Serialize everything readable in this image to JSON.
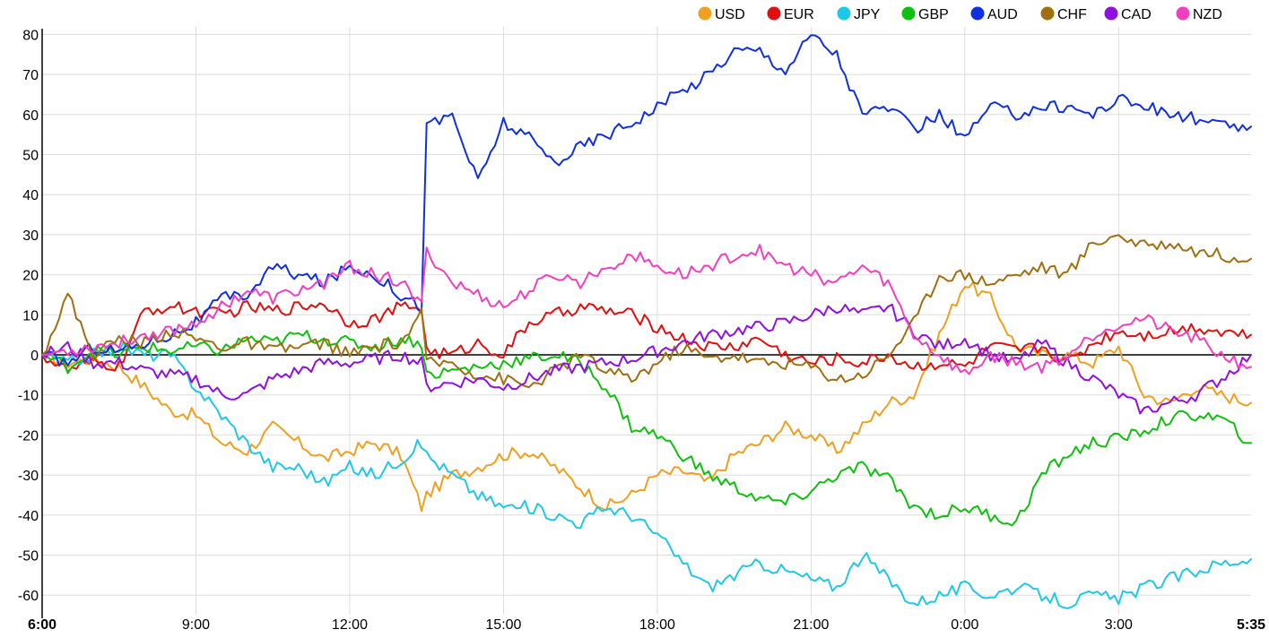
{
  "chart_data": {
    "type": "line",
    "title": "",
    "xlabel": "",
    "ylabel": "",
    "x_ticks": [
      "6:00",
      "9:00",
      "12:00",
      "15:00",
      "18:00",
      "21:00",
      "0:00",
      "3:00",
      "5:35"
    ],
    "x_range_hours": [
      0,
      23.583
    ],
    "ylim": [
      -63,
      81
    ],
    "y_ticks": [
      80,
      70,
      60,
      50,
      40,
      30,
      20,
      10,
      0,
      -10,
      -20,
      -30,
      -40,
      -50,
      -60
    ],
    "grid": true,
    "legend_position": "top-right",
    "series": [
      {
        "name": "USD",
        "color": "#f0a020",
        "x": [
          0,
          0.5,
          1,
          1.5,
          2,
          2.5,
          3,
          3.5,
          4,
          4.5,
          5,
          5.5,
          6,
          6.5,
          7,
          7.4,
          7.5,
          8,
          8.5,
          9,
          9.5,
          10,
          10.5,
          11,
          11.5,
          12,
          12.5,
          13,
          13.5,
          14,
          14.5,
          15,
          15.5,
          16,
          16.5,
          17,
          17.5,
          18,
          18.5,
          19,
          19.5,
          20,
          20.5,
          21,
          21.5,
          22,
          22.5,
          23,
          23.583
        ],
        "y": [
          0,
          -2,
          -1,
          -3,
          -8,
          -14,
          -15,
          -22,
          -24,
          -18,
          -22,
          -26,
          -24,
          -22,
          -25,
          -38,
          -35,
          -30,
          -28,
          -25,
          -24,
          -28,
          -33,
          -38,
          -35,
          -30,
          -29,
          -32,
          -25,
          -22,
          -18,
          -20,
          -24,
          -18,
          -12,
          -10,
          5,
          18,
          14,
          2,
          0,
          0,
          -2,
          2,
          -10,
          -12,
          -8,
          -10,
          -12
        ]
      },
      {
        "name": "EUR",
        "color": "#e01010",
        "x": [
          0,
          0.5,
          1,
          1.5,
          2,
          2.5,
          3,
          3.5,
          4,
          4.5,
          5,
          5.5,
          6,
          6.5,
          7,
          7.4,
          7.5,
          8,
          8.5,
          9,
          9.5,
          10,
          10.5,
          11,
          11.5,
          12,
          12.5,
          13,
          13.5,
          14,
          14.5,
          15,
          15.5,
          16,
          16.5,
          17,
          17.5,
          18,
          18.5,
          19,
          19.5,
          20,
          20.5,
          21,
          21.5,
          22,
          22.5,
          23,
          23.583
        ],
        "y": [
          0,
          -4,
          -2,
          -3,
          11,
          12,
          11,
          10,
          12,
          11,
          12,
          13,
          8,
          9,
          12,
          12,
          1,
          0,
          3,
          0,
          8,
          10,
          12,
          11,
          10,
          7,
          4,
          2,
          2,
          4,
          0,
          -2,
          -1,
          -2,
          0,
          -3,
          -2,
          -3,
          2,
          1,
          2,
          -2,
          3,
          6,
          5,
          6,
          7,
          6,
          5
        ]
      },
      {
        "name": "JPY",
        "color": "#20c8e8",
        "x": [
          0,
          0.5,
          1,
          1.5,
          2,
          2.5,
          3,
          3.5,
          4,
          4.5,
          5,
          5.5,
          6,
          6.5,
          7,
          7.4,
          7.5,
          8,
          8.5,
          9,
          9.5,
          10,
          10.5,
          11,
          11.5,
          12,
          12.5,
          13,
          13.5,
          14,
          14.5,
          15,
          15.5,
          16,
          16.5,
          17,
          17.5,
          18,
          18.5,
          19,
          19.5,
          20,
          20.5,
          21,
          21.5,
          22,
          22.5,
          23,
          23.583
        ],
        "y": [
          0,
          -2,
          0,
          2,
          0,
          0,
          -8,
          -15,
          -22,
          -28,
          -28,
          -32,
          -28,
          -30,
          -26,
          -22,
          -25,
          -30,
          -35,
          -38,
          -38,
          -40,
          -42,
          -38,
          -40,
          -45,
          -52,
          -58,
          -55,
          -52,
          -54,
          -56,
          -58,
          -50,
          -56,
          -62,
          -60,
          -58,
          -60,
          -58,
          -60,
          -62,
          -60,
          -61,
          -58,
          -56,
          -54,
          -52,
          -51
        ]
      },
      {
        "name": "GBP",
        "color": "#10c010",
        "x": [
          0,
          0.5,
          1,
          1.5,
          2,
          2.5,
          3,
          3.5,
          4,
          4.5,
          5,
          5.5,
          6,
          6.5,
          7,
          7.4,
          7.5,
          8,
          8.5,
          9,
          9.5,
          10,
          10.5,
          11,
          11.5,
          12,
          12.5,
          13,
          13.5,
          14,
          14.5,
          15,
          15.5,
          16,
          16.5,
          17,
          17.5,
          18,
          18.5,
          19,
          19.5,
          20,
          20.5,
          21,
          21.5,
          22,
          22.5,
          23,
          23.583
        ],
        "y": [
          0,
          -3,
          1,
          0,
          2,
          1,
          2,
          1,
          4,
          3,
          5,
          4,
          3,
          2,
          4,
          3,
          -5,
          -4,
          -3,
          -2,
          -1,
          0,
          -2,
          -8,
          -18,
          -20,
          -25,
          -30,
          -33,
          -36,
          -37,
          -34,
          -30,
          -28,
          -31,
          -38,
          -40,
          -38,
          -40,
          -42,
          -30,
          -25,
          -22,
          -21,
          -19,
          -16,
          -15,
          -16,
          -22
        ]
      },
      {
        "name": "AUD",
        "color": "#1030e0",
        "x": [
          0,
          0.5,
          1,
          1.5,
          2,
          2.5,
          3,
          3.5,
          4,
          4.5,
          5,
          5.5,
          6,
          6.5,
          7,
          7.4,
          7.5,
          8,
          8.5,
          9,
          9.5,
          10,
          10.5,
          11,
          11.5,
          12,
          12.5,
          13,
          13.5,
          14,
          14.5,
          15,
          15.5,
          16,
          16.5,
          17,
          17.5,
          18,
          18.5,
          19,
          19.5,
          20,
          20.5,
          21,
          21.5,
          22,
          22.5,
          23,
          23.583
        ],
        "y": [
          0,
          -2,
          2,
          1,
          3,
          5,
          8,
          14,
          15,
          22,
          20,
          18,
          22,
          20,
          15,
          12,
          57,
          60,
          43,
          58,
          54,
          48,
          52,
          55,
          58,
          62,
          66,
          70,
          76,
          76,
          71,
          80,
          75,
          60,
          62,
          56,
          60,
          54,
          62,
          60,
          62,
          62,
          60,
          64,
          62,
          60,
          59,
          57,
          57
        ]
      },
      {
        "name": "CHF",
        "color": "#a07010",
        "x": [
          0,
          0.5,
          1,
          1.5,
          2,
          2.5,
          3,
          3.5,
          4,
          4.5,
          5,
          5.5,
          6,
          6.5,
          7,
          7.4,
          7.5,
          8,
          8.5,
          9,
          9.5,
          10,
          10.5,
          11,
          11.5,
          12,
          12.5,
          13,
          13.5,
          14,
          14.5,
          15,
          15.5,
          16,
          16.5,
          17,
          17.5,
          18,
          18.5,
          19,
          19.5,
          20,
          20.5,
          21,
          21.5,
          22,
          22.5,
          23,
          23.583
        ],
        "y": [
          0,
          15,
          0,
          4,
          3,
          6,
          4,
          2,
          3,
          1,
          2,
          3,
          0,
          2,
          3,
          10,
          -2,
          -2,
          -5,
          -6,
          -8,
          -4,
          0,
          -4,
          -6,
          -2,
          2,
          -1,
          0,
          -2,
          -2,
          -3,
          -6,
          -5,
          0,
          8,
          20,
          20,
          18,
          20,
          22,
          20,
          28,
          30,
          27,
          28,
          26,
          25,
          24
        ]
      },
      {
        "name": "CAD",
        "color": "#9010e0",
        "x": [
          0,
          0.5,
          1,
          1.5,
          2,
          2.5,
          3,
          3.5,
          4,
          4.5,
          5,
          5.5,
          6,
          6.5,
          7,
          7.4,
          7.5,
          8,
          8.5,
          9,
          9.5,
          10,
          10.5,
          11,
          11.5,
          12,
          12.5,
          13,
          13.5,
          14,
          14.5,
          15,
          15.5,
          16,
          16.5,
          17,
          17.5,
          18,
          18.5,
          19,
          19.5,
          20,
          20.5,
          21,
          21.5,
          22,
          22.5,
          23,
          23.583
        ],
        "y": [
          0,
          2,
          -2,
          -2,
          -4,
          -5,
          -6,
          -10,
          -10,
          -6,
          -4,
          -2,
          -2,
          -1,
          0,
          -2,
          -8,
          -7,
          -6,
          -8,
          -6,
          -4,
          -3,
          -2,
          -1,
          1,
          3,
          5,
          6,
          7,
          8,
          10,
          12,
          10,
          12,
          6,
          2,
          4,
          0,
          -2,
          3,
          -2,
          -6,
          -10,
          -14,
          -12,
          -10,
          -6,
          0
        ]
      },
      {
        "name": "NZD",
        "color": "#f040c0",
        "x": [
          0,
          0.5,
          1,
          1.5,
          2,
          2.5,
          3,
          3.5,
          4,
          4.5,
          5,
          5.5,
          6,
          6.5,
          7,
          7.4,
          7.5,
          8,
          8.5,
          9,
          9.5,
          10,
          10.5,
          11,
          11.5,
          12,
          12.5,
          13,
          13.5,
          14,
          14.5,
          15,
          15.5,
          16,
          16.5,
          17,
          17.5,
          18,
          18.5,
          19,
          19.5,
          20,
          20.5,
          21,
          21.5,
          22,
          22.5,
          23,
          23.583
        ],
        "y": [
          0,
          1,
          2,
          3,
          5,
          6,
          8,
          12,
          16,
          14,
          16,
          18,
          22,
          20,
          18,
          12,
          26,
          18,
          15,
          12,
          16,
          20,
          18,
          22,
          25,
          22,
          20,
          22,
          25,
          26,
          22,
          20,
          18,
          22,
          18,
          5,
          0,
          -5,
          0,
          -2,
          -3,
          0,
          5,
          8,
          9,
          6,
          4,
          0,
          -3
        ]
      }
    ]
  }
}
